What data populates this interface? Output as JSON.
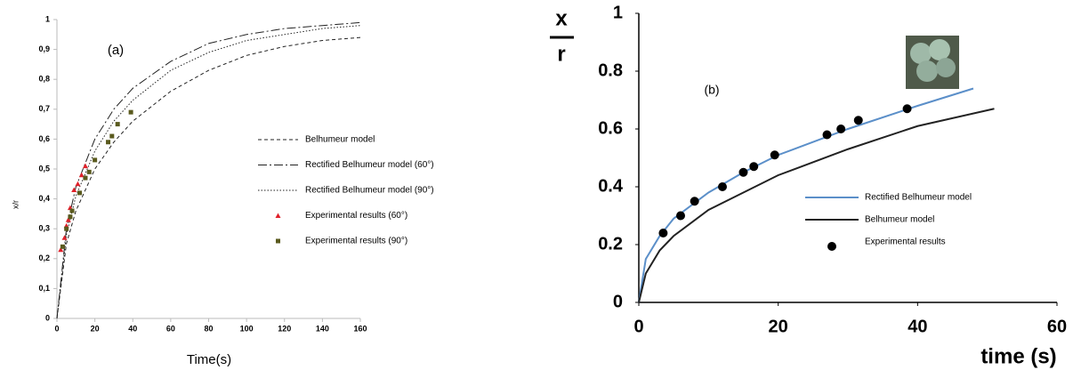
{
  "chart_data": [
    {
      "type": "line",
      "annotation": "(a)",
      "xlabel": "Time(s)",
      "ylabel": "x/r",
      "xlim": [
        0,
        160
      ],
      "xticks": [
        0,
        20,
        40,
        60,
        80,
        100,
        120,
        140,
        160
      ],
      "ylim": [
        0,
        1
      ],
      "yticks": [
        0,
        {
          "value": 0.1,
          "label": "0,1"
        },
        {
          "value": 0.2,
          "label": "0,2"
        },
        {
          "value": 0.3,
          "label": "0,3"
        },
        {
          "value": 0.4,
          "label": "0,4"
        },
        {
          "value": 0.5,
          "label": "0,5"
        },
        {
          "value": 0.6,
          "label": "0,6"
        },
        {
          "value": 0.7,
          "label": "0,7"
        },
        {
          "value": 0.8,
          "label": "0,8"
        },
        {
          "value": 0.9,
          "label": "0,9"
        },
        1
      ],
      "legend_position": "center right",
      "series": [
        {
          "name": "Belhumeur model",
          "color": "#222222",
          "style": "dashed",
          "x": [
            0,
            5,
            10,
            20,
            30,
            40,
            60,
            80,
            100,
            120,
            140,
            160
          ],
          "values": [
            0,
            0.25,
            0.36,
            0.5,
            0.59,
            0.66,
            0.76,
            0.83,
            0.88,
            0.91,
            0.93,
            0.94
          ]
        },
        {
          "name": "Rectified Belhumeur model (60°)",
          "color": "#222222",
          "style": "dashdot",
          "x": [
            0,
            5,
            10,
            20,
            30,
            40,
            60,
            80,
            100,
            120,
            140,
            160
          ],
          "values": [
            0,
            0.3,
            0.44,
            0.6,
            0.7,
            0.77,
            0.86,
            0.92,
            0.95,
            0.97,
            0.98,
            0.99
          ]
        },
        {
          "name": "Rectified Belhumeur model (90°)",
          "color": "#222222",
          "style": "dotted",
          "x": [
            0,
            5,
            10,
            20,
            30,
            40,
            60,
            80,
            100,
            120,
            140,
            160
          ],
          "values": [
            0,
            0.28,
            0.41,
            0.56,
            0.66,
            0.73,
            0.83,
            0.89,
            0.93,
            0.95,
            0.97,
            0.98
          ]
        },
        {
          "name": "Experimental results  (60°)",
          "color": "#e0202a",
          "style": "marker",
          "marker": "triangle",
          "x": [
            2,
            4,
            5,
            6,
            7,
            9,
            11,
            13,
            15
          ],
          "values": [
            0.23,
            0.27,
            0.31,
            0.33,
            0.37,
            0.43,
            0.45,
            0.48,
            0.51
          ]
        },
        {
          "name": "Experimental results  (90°)",
          "color": "#5a5a1e",
          "style": "marker",
          "marker": "square",
          "x": [
            3,
            5,
            7,
            8,
            12,
            15,
            17,
            20,
            27,
            29,
            32,
            39
          ],
          "values": [
            0.24,
            0.3,
            0.34,
            0.36,
            0.42,
            0.47,
            0.49,
            0.53,
            0.59,
            0.61,
            0.65,
            0.69
          ]
        }
      ]
    },
    {
      "type": "line",
      "annotation": "(b)",
      "xlabel": "time (s)",
      "ylabel": [
        "x",
        "r"
      ],
      "xlim": [
        0,
        60
      ],
      "xticks": [
        0,
        20,
        40,
        60
      ],
      "ylim": [
        0,
        1
      ],
      "yticks": [
        0,
        0.2,
        0.4,
        0.6,
        0.8,
        1
      ],
      "legend_position": "lower right",
      "series": [
        {
          "name": "Rectified Belhumeur model",
          "color": "#5b8fc9",
          "style": "solid",
          "x": [
            0,
            1,
            3,
            5,
            10,
            15,
            20,
            30,
            40,
            48
          ],
          "values": [
            0,
            0.15,
            0.23,
            0.29,
            0.38,
            0.45,
            0.51,
            0.6,
            0.68,
            0.74
          ]
        },
        {
          "name": "Belhumeur model",
          "color": "#222222",
          "style": "solid",
          "x": [
            0,
            1,
            3,
            5,
            10,
            15,
            20,
            30,
            40,
            51
          ],
          "values": [
            0,
            0.1,
            0.18,
            0.23,
            0.32,
            0.38,
            0.44,
            0.53,
            0.61,
            0.67
          ]
        },
        {
          "name": "Experimental results",
          "color": "#000000",
          "style": "marker",
          "marker": "circle",
          "x": [
            3.5,
            6,
            8,
            12,
            15,
            16.5,
            19.5,
            27,
            29,
            31.5,
            38.5
          ],
          "values": [
            0.24,
            0.3,
            0.35,
            0.4,
            0.45,
            0.47,
            0.51,
            0.58,
            0.6,
            0.63,
            0.67
          ]
        }
      ]
    }
  ]
}
